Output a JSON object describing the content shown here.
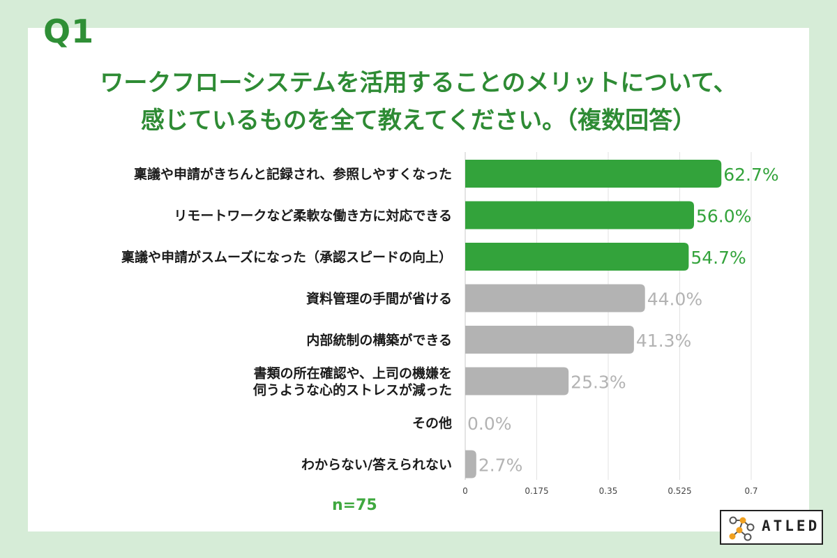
{
  "header": {
    "question_number": "Q1",
    "title_line1": "ワークフローシステムを活用することのメリットについて、",
    "title_line2": "感じているものを全て教えてください。（複数回答）"
  },
  "sample_size": "n=75",
  "logo": {
    "text": "ATLED",
    "icon": "molecule-logo-icon"
  },
  "colors": {
    "highlight": "#33a33b",
    "muted": "#b3b3b3",
    "title": "#2e8b34"
  },
  "chart_data": {
    "type": "bar",
    "orientation": "horizontal",
    "categories": [
      [
        "稟議や申請がきちんと記録され、参照しやすくなった"
      ],
      [
        "リモートワークなど柔軟な働き方に対応できる"
      ],
      [
        "稟議や申請がスムーズになった（承認スピードの向上）"
      ],
      [
        "資料管理の手間が省ける"
      ],
      [
        "内部統制の構築ができる"
      ],
      [
        "書類の所在確認や、上司の機嫌を",
        "伺うような心的ストレスが減った"
      ],
      [
        "その他"
      ],
      [
        "わからない/答えられない"
      ]
    ],
    "values": [
      0.627,
      0.56,
      0.547,
      0.44,
      0.413,
      0.253,
      0.0,
      0.027
    ],
    "value_labels": [
      "62.7%",
      "56.0%",
      "54.7%",
      "44.0%",
      "41.3%",
      "25.3%",
      "0.0%",
      "2.7%"
    ],
    "highlighted": [
      true,
      true,
      true,
      false,
      false,
      false,
      false,
      false
    ],
    "xlim": [
      0,
      0.7
    ],
    "xticks": [
      0,
      0.175,
      0.35,
      0.525,
      0.7
    ],
    "xtick_labels": [
      "0",
      "0.175",
      "0.35",
      "0.525",
      "0.7"
    ],
    "grid": true
  }
}
